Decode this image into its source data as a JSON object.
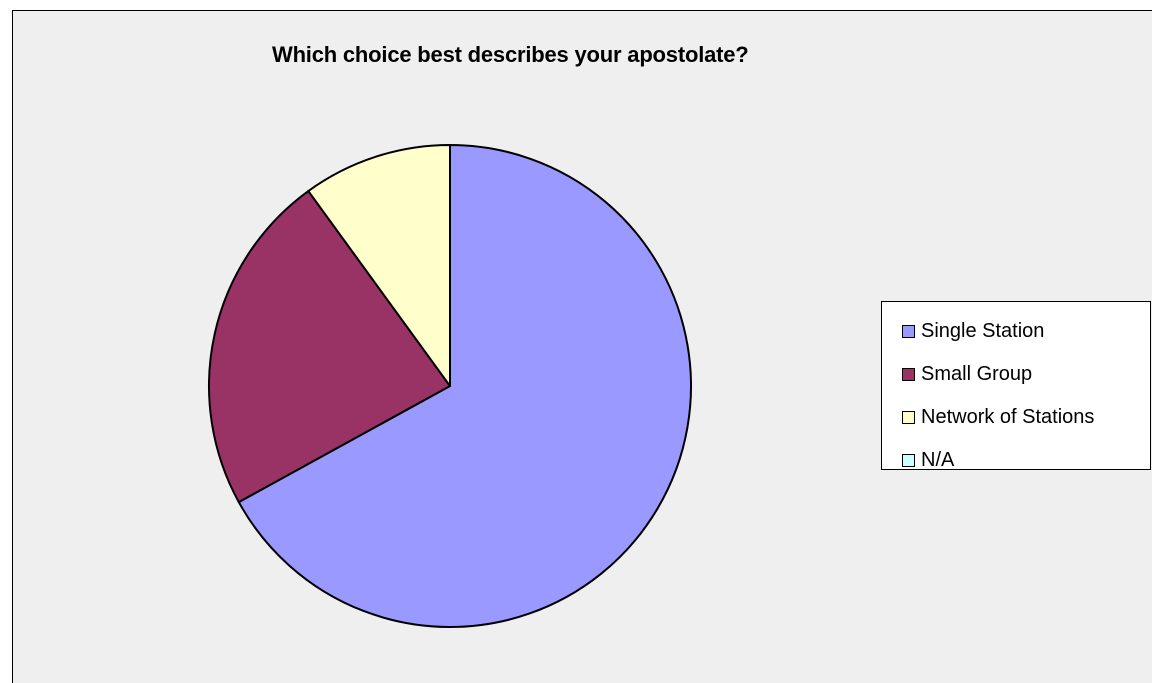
{
  "chart_data": {
    "type": "pie",
    "title": "Which choice best describes your apostolate?",
    "categories": [
      "Single Station",
      "Small Group",
      "Network of Stations",
      "N/A"
    ],
    "values": [
      67,
      23,
      10,
      0
    ],
    "colors": [
      "#9999ff",
      "#993366",
      "#ffffcc",
      "#ccffff"
    ],
    "start_angle_deg": 0,
    "direction": "clockwise",
    "legend_position": "right"
  },
  "legend": {
    "items": [
      {
        "label": "Single Station",
        "color": "#9999ff"
      },
      {
        "label": "Small Group",
        "color": "#993366"
      },
      {
        "label": "Network of Stations",
        "color": "#ffffcc"
      },
      {
        "label": "N/A",
        "color": "#ccffff"
      }
    ]
  }
}
